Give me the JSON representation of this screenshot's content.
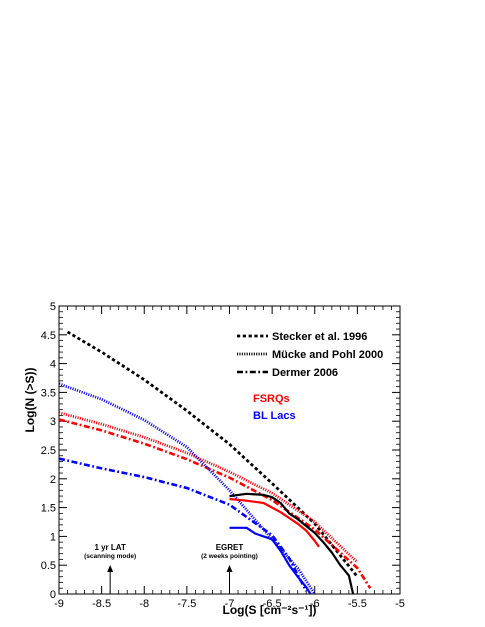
{
  "chart_data": {
    "type": "line",
    "xlabel": "Log(S [cm⁻²s⁻¹])",
    "ylabel": "Log(N (>S))",
    "xlim": [
      -9,
      -5
    ],
    "ylim": [
      0,
      5
    ],
    "x_ticks": [
      "-9",
      "-8.5",
      "-8",
      "-7.5",
      "-7",
      "-6.5",
      "-6",
      "-5.5",
      "-5"
    ],
    "y_ticks": [
      "0",
      "0.5",
      "1",
      "1.5",
      "2",
      "2.5",
      "3",
      "3.5",
      "4",
      "4.5",
      "5"
    ],
    "grid": false,
    "legend_position": "top-right",
    "legend_styles": [
      {
        "label": "Stecker et al. 1996",
        "style": "dashed"
      },
      {
        "label": "Mücke and Pohl 2000",
        "style": "dotted"
      },
      {
        "label": "Dermer 2006",
        "style": "dash-dot"
      }
    ],
    "legend_classes": [
      {
        "label": "FSRQs",
        "color": "#ff0000"
      },
      {
        "label": "BL Lacs",
        "color": "#0000ff"
      }
    ],
    "series": [
      {
        "style": "dashed",
        "color": "#000000",
        "x": [
          -8.9,
          -8.5,
          -8.0,
          -7.5,
          -7.0,
          -6.5,
          -6.0,
          -5.5
        ],
        "y": [
          4.55,
          4.2,
          3.72,
          3.18,
          2.6,
          1.92,
          1.22,
          0.3
        ]
      },
      {
        "style": "dotted",
        "color": "#ff0000",
        "x": [
          -9.0,
          -8.5,
          -8.0,
          -7.5,
          -7.0,
          -6.5,
          -6.0,
          -5.5
        ],
        "y": [
          3.15,
          2.95,
          2.72,
          2.45,
          2.12,
          1.75,
          1.25,
          0.55
        ]
      },
      {
        "style": "dash-dot",
        "color": "#ff0000",
        "x": [
          -9.0,
          -8.5,
          -8.0,
          -7.5,
          -7.0,
          -6.5,
          -6.0,
          -5.5,
          -5.35
        ],
        "y": [
          3.03,
          2.84,
          2.61,
          2.34,
          2.02,
          1.63,
          1.12,
          0.45,
          0.1
        ]
      },
      {
        "style": "dotted",
        "color": "#0000ff",
        "x": [
          -9.0,
          -8.5,
          -8.0,
          -7.5,
          -7.0,
          -6.5,
          -6.2,
          -6.0
        ],
        "y": [
          3.65,
          3.38,
          3.02,
          2.55,
          1.8,
          0.95,
          0.45,
          0.0
        ]
      },
      {
        "style": "dash-dot",
        "color": "#0000ff",
        "x": [
          -9.0,
          -8.5,
          -8.0,
          -7.5,
          -7.0,
          -6.5,
          -6.3,
          -6.1
        ],
        "y": [
          2.35,
          2.18,
          2.03,
          1.84,
          1.55,
          1.02,
          0.62,
          0.05
        ]
      },
      {
        "style": "solid",
        "color": "#000000",
        "x": [
          -7.0,
          -6.8,
          -6.6,
          -6.5,
          -6.4,
          -6.3,
          -6.2,
          -6.1,
          -6.0,
          -5.9,
          -5.8,
          -5.7,
          -5.6,
          -5.55
        ],
        "y": [
          1.7,
          1.74,
          1.72,
          1.68,
          1.58,
          1.4,
          1.3,
          1.18,
          1.06,
          0.9,
          0.72,
          0.5,
          0.32,
          0.0
        ]
      },
      {
        "style": "solid",
        "color": "#ff0000",
        "x": [
          -7.0,
          -6.8,
          -6.6,
          -6.5,
          -6.4,
          -6.3,
          -6.2,
          -6.1,
          -6.0,
          -5.95
        ],
        "y": [
          1.65,
          1.62,
          1.58,
          1.5,
          1.42,
          1.32,
          1.22,
          1.1,
          0.92,
          0.82
        ]
      },
      {
        "style": "solid",
        "color": "#0000ff",
        "x": [
          -7.0,
          -6.8,
          -6.7,
          -6.5,
          -6.4,
          -6.3,
          -6.2,
          -6.1,
          -6.05
        ],
        "y": [
          1.15,
          1.15,
          1.05,
          0.95,
          0.75,
          0.5,
          0.3,
          0.12,
          0.0
        ]
      }
    ],
    "annotations": [
      {
        "text": "1 yr LAT",
        "subtext": "(scanning mode)",
        "x": -8.4
      },
      {
        "text": "EGRET",
        "subtext": "(2 weeks pointing)",
        "x": -7.0
      }
    ]
  }
}
